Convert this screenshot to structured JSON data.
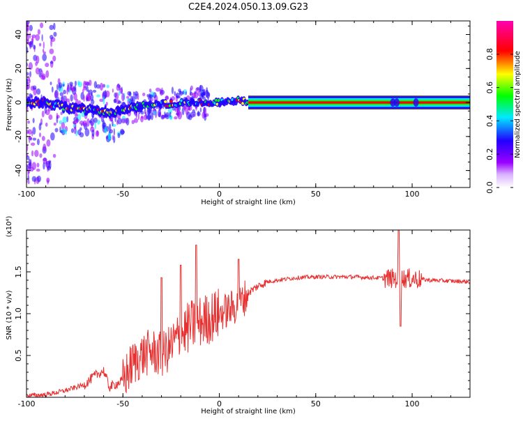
{
  "page_title": "C2E4.2024.050.13.09.G23",
  "chart_data": [
    {
      "type": "heatmap",
      "title": "C2E4.2024.050.13.09.G23",
      "xlabel": "Height of straight line (km)",
      "ylabel": "Frequency (Hz)",
      "xlim": [
        -100,
        130
      ],
      "ylim": [
        -50,
        48
      ],
      "x_ticks": [
        -100,
        -50,
        0,
        50,
        100
      ],
      "y_ticks": [
        -40,
        -20,
        0,
        20,
        40
      ],
      "colorbar": {
        "label": "Normalized spectral amplitude",
        "range": [
          0,
          1
        ],
        "ticks": [
          "0.0",
          "0.2",
          "0.4",
          "0.6",
          "0.8"
        ],
        "colormap": [
          "#ffffff",
          "#9b00ff",
          "#2200ff",
          "#00e8ff",
          "#00ff00",
          "#ffff00",
          "#ff0000",
          "#ff00b0"
        ]
      },
      "dominant_line": [
        {
          "x": -100,
          "y": 0
        },
        {
          "x": -90,
          "y": 0
        },
        {
          "x": -80,
          "y": -3
        },
        {
          "x": -70,
          "y": -4
        },
        {
          "x": -60,
          "y": -5
        },
        {
          "x": -55,
          "y": -6
        },
        {
          "x": -50,
          "y": -4
        },
        {
          "x": -40,
          "y": -2
        },
        {
          "x": -30,
          "y": -1
        },
        {
          "x": -20,
          "y": 0
        },
        {
          "x": -10,
          "y": 0
        },
        {
          "x": 0,
          "y": 0
        },
        {
          "x": 10,
          "y": 1
        },
        {
          "x": 20,
          "y": 0
        },
        {
          "x": 50,
          "y": 0
        },
        {
          "x": 90,
          "y": 0
        },
        {
          "x": 130,
          "y": 0
        }
      ]
    },
    {
      "type": "line",
      "xlabel": "Height of straight line (km)",
      "ylabel": "SNR (10 * v/v)",
      "y_multiplier": "(x10⁴)",
      "xlim": [
        -100,
        130
      ],
      "ylim": [
        0,
        2.0
      ],
      "x_ticks": [
        -100,
        -50,
        0,
        50,
        100
      ],
      "y_ticks": [
        "0.5",
        "1.0",
        "1.5"
      ],
      "color": "#e83030",
      "envelope": [
        {
          "x": -100,
          "y": 0.02
        },
        {
          "x": -90,
          "y": 0.03
        },
        {
          "x": -80,
          "y": 0.08
        },
        {
          "x": -70,
          "y": 0.15
        },
        {
          "x": -65,
          "y": 0.25
        },
        {
          "x": -60,
          "y": 0.32
        },
        {
          "x": -57,
          "y": 0.12
        },
        {
          "x": -50,
          "y": 0.2
        },
        {
          "x": -45,
          "y": 0.4
        },
        {
          "x": -40,
          "y": 0.5
        },
        {
          "x": -35,
          "y": 0.55
        },
        {
          "x": -30,
          "y": 0.5
        },
        {
          "x": -25,
          "y": 0.6
        },
        {
          "x": -20,
          "y": 0.75
        },
        {
          "x": -15,
          "y": 0.85
        },
        {
          "x": -10,
          "y": 0.9
        },
        {
          "x": -5,
          "y": 0.95
        },
        {
          "x": 0,
          "y": 1.0
        },
        {
          "x": 5,
          "y": 1.05
        },
        {
          "x": 10,
          "y": 1.1
        },
        {
          "x": 15,
          "y": 1.25
        },
        {
          "x": 20,
          "y": 1.33
        },
        {
          "x": 25,
          "y": 1.38
        },
        {
          "x": 30,
          "y": 1.4
        },
        {
          "x": 40,
          "y": 1.43
        },
        {
          "x": 50,
          "y": 1.44
        },
        {
          "x": 60,
          "y": 1.44
        },
        {
          "x": 70,
          "y": 1.44
        },
        {
          "x": 80,
          "y": 1.43
        },
        {
          "x": 90,
          "y": 1.42
        },
        {
          "x": 95,
          "y": 1.42
        },
        {
          "x": 100,
          "y": 1.42
        },
        {
          "x": 110,
          "y": 1.4
        },
        {
          "x": 120,
          "y": 1.39
        },
        {
          "x": 130,
          "y": 1.38
        }
      ],
      "spikes": [
        {
          "x": -30,
          "y": 1.43
        },
        {
          "x": -20,
          "y": 1.58
        },
        {
          "x": -12,
          "y": 1.82
        },
        {
          "x": 10,
          "y": 1.65
        },
        {
          "x": 93,
          "y": 2.0
        },
        {
          "x": 94,
          "y": 0.85
        }
      ]
    }
  ]
}
